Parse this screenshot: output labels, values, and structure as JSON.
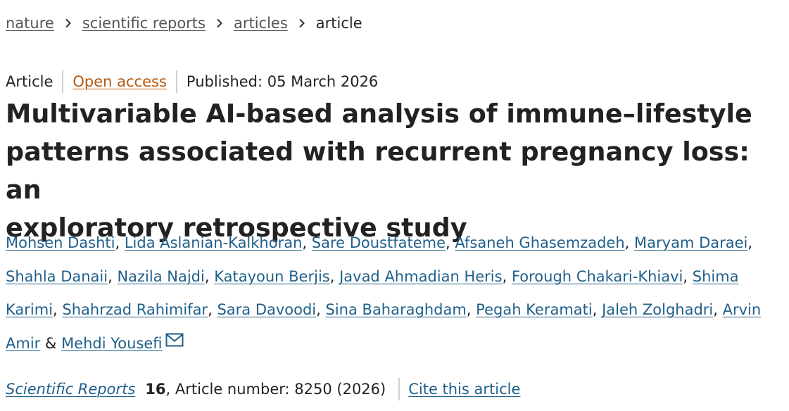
{
  "breadcrumb": {
    "items": [
      {
        "label": "nature"
      },
      {
        "label": "scientific reports"
      },
      {
        "label": "articles"
      },
      {
        "label": "article"
      }
    ],
    "separator_icon": "chevron-right-icon"
  },
  "meta": {
    "type": "Article",
    "access": "Open access",
    "published": "Published: 05 March 2026"
  },
  "title": {
    "line1": "Multivariable AI-based analysis of immune–lifestyle",
    "line2": "patterns associated with recurrent pregnancy loss: an",
    "line3": "exploratory retrospective study"
  },
  "authors": {
    "list": [
      "Mohsen Dashti",
      "Lida Aslanian-Kalkhoran",
      "Sare Doustfateme",
      "Afsaneh Ghasemzadeh",
      "Maryam Daraei",
      "Shahla Danaii",
      "Nazila Najdi",
      "Katayoun Berjis",
      "Javad Ahmadian Heris",
      "Forough Chakari-Khiavi",
      "Shima Karimi",
      "Shahrzad Rahimifar",
      "Sara Davoodi",
      "Sina Baharaghdam",
      "Pegah Keramati",
      "Jaleh Zolghadri",
      "Arvin Amir",
      "Mehdi Yousefi"
    ],
    "last_separator": "&",
    "corresponding_icon": "envelope-icon"
  },
  "citation": {
    "journal": "Scientific Reports",
    "volume": "16",
    "article_number": ", Article number: 8250 (2026)",
    "cite_link": "Cite this article"
  },
  "colors": {
    "link": "#1f5f8a",
    "open_access": "#b5580d",
    "breadcrumb_link": "#555555",
    "text": "#222222",
    "separator": "#d0d0d0"
  }
}
